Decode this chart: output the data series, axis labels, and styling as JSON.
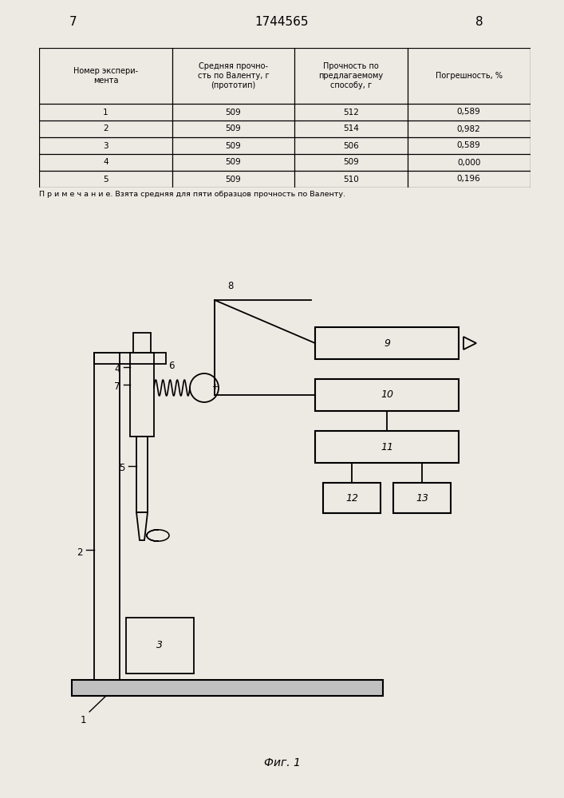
{
  "page_numbers": [
    "7",
    "1744565",
    "8"
  ],
  "table": {
    "headers": [
      "Номер экспери-\nмента",
      "Средняя прочно-\nсть по Валенту, г\n(прототип)",
      "Прочность по\nпредлагаемому\nспособу, г",
      "Погрешность, %"
    ],
    "rows": [
      [
        "1",
        "509",
        "512",
        "0,589"
      ],
      [
        "2",
        "509",
        "514",
        "0,982"
      ],
      [
        "3",
        "509",
        "506",
        "0,589"
      ],
      [
        "4",
        "509",
        "509",
        "0,000"
      ],
      [
        "5",
        "509",
        "510",
        "0,196"
      ]
    ],
    "note": "П р и м е ч а н и е. Взята средняя для пяти образцов прочность по Валенту."
  },
  "fig_caption": "Фиг. 1",
  "bg_color": "#ede9e3"
}
